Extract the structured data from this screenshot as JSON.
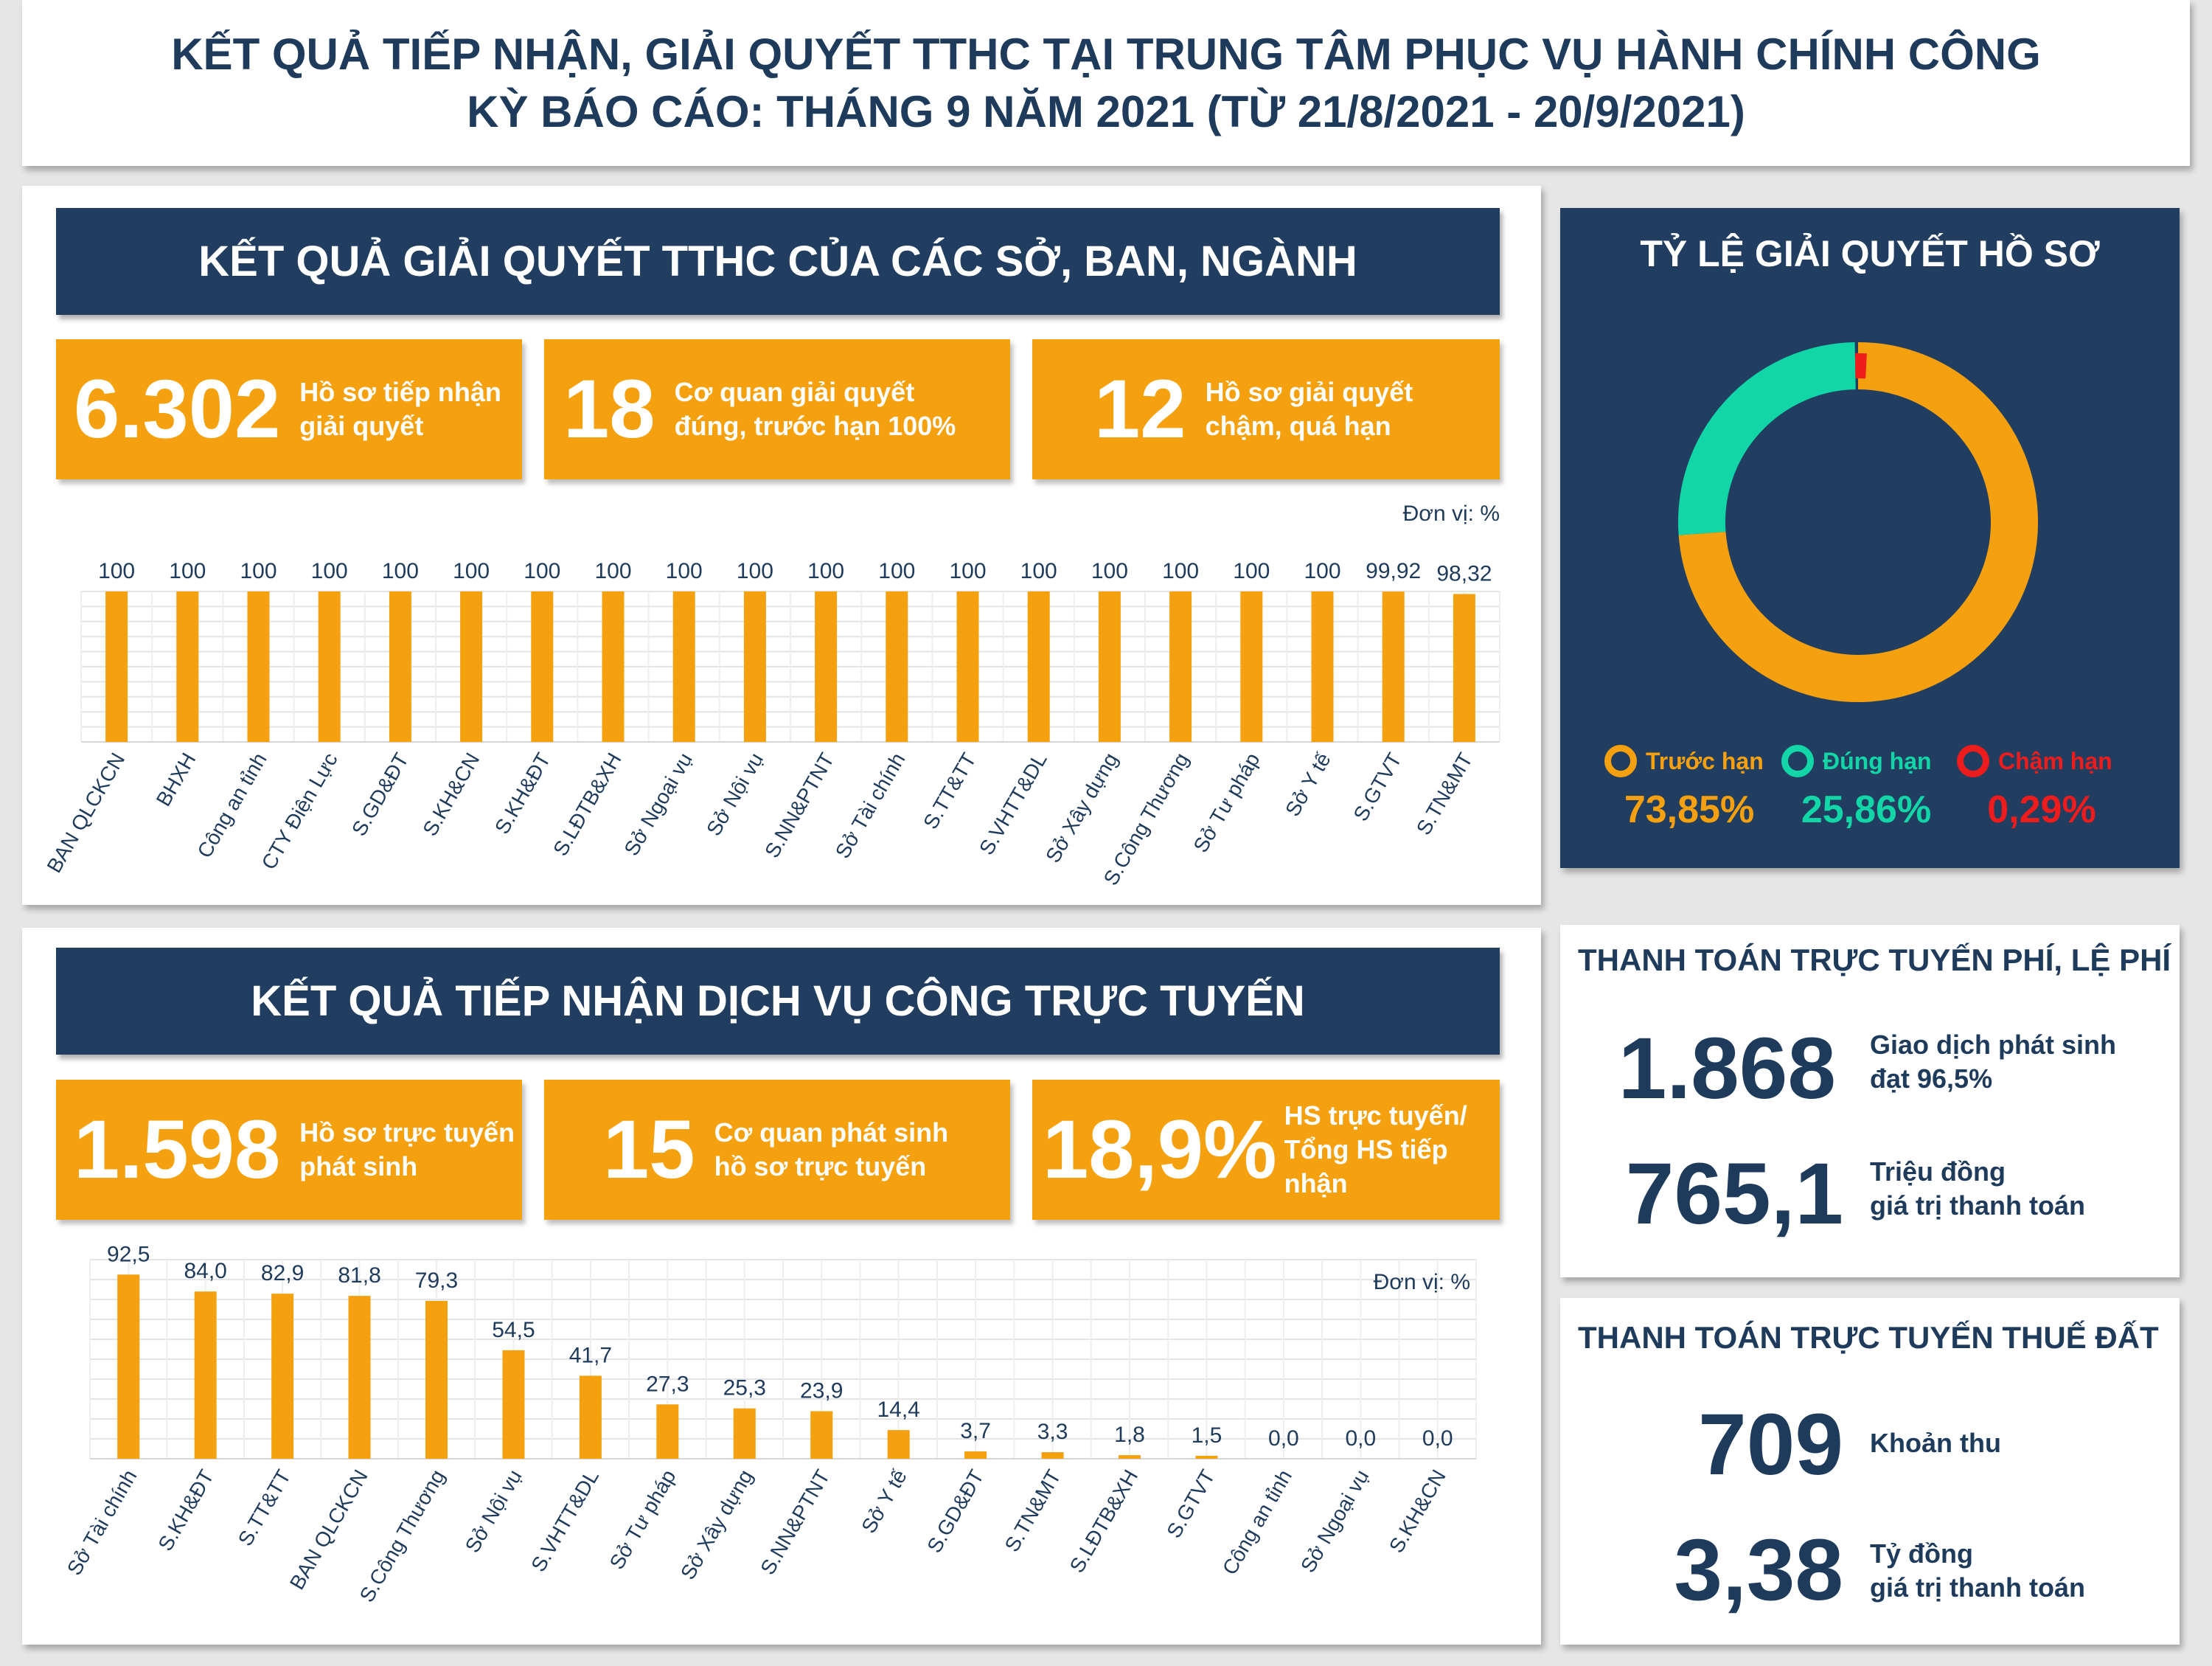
{
  "header": {
    "line1": "KẾT QUẢ TIẾP NHẬN, GIẢI QUYẾT TTHC TẠI TRUNG TÂM PHỤC VỤ HÀNH CHÍNH CÔNG",
    "line2": "KỲ BÁO CÁO: THÁNG 9 NĂM 2021 (TỪ 21/8/2021 - 20/9/2021)"
  },
  "section1": {
    "title": "KẾT QUẢ GIẢI QUYẾT TTHC CỦA CÁC SỞ, BAN, NGÀNH",
    "stats": [
      {
        "number": "6.302",
        "line1": "Hồ sơ tiếp nhận",
        "line2": "giải quyết"
      },
      {
        "number": "18",
        "line1": "Cơ quan giải quyết",
        "line2": "đúng, trước hạn 100%"
      },
      {
        "number": "12",
        "line1": "Hồ sơ giải quyết",
        "line2": "chậm, quá hạn"
      }
    ],
    "unit": "Đơn vị: %"
  },
  "section2": {
    "title": "KẾT QUẢ TIẾP NHẬN DỊCH VỤ CÔNG TRỰC TUYẾN",
    "stats": [
      {
        "number": "1.598",
        "line1": "Hồ sơ trực tuyến",
        "line2": "phát sinh"
      },
      {
        "number": "15",
        "line1": "Cơ quan phát sinh",
        "line2": "hồ sơ trực tuyến"
      },
      {
        "number": "18,9%",
        "line1": "HS trực tuyến/",
        "line2": "Tổng HS tiếp nhận"
      }
    ],
    "unit": "Đơn vị: %"
  },
  "donut": {
    "title": "TỶ LỆ GIẢI QUYẾT HỒ SƠ",
    "legend": [
      {
        "label": "Trước hạn",
        "value": "73,85%",
        "color": "#f5a10f"
      },
      {
        "label": "Đúng hạn",
        "value": "25,86%",
        "color": "#12d6a7"
      },
      {
        "label": "Chậm hạn",
        "value": "0,29%",
        "color": "#ee1c1c"
      }
    ]
  },
  "fees": {
    "title": "THANH TOÁN TRỰC TUYẾN PHÍ, LỆ PHÍ",
    "items": [
      {
        "number": "1.868",
        "line1": "Giao dịch phát sinh",
        "line2": "đạt 96,5%"
      },
      {
        "number": "765,1",
        "line1": "Triệu đồng",
        "line2": "giá trị thanh toán"
      }
    ]
  },
  "landtax": {
    "title": "THANH TOÁN TRỰC TUYẾN THUẾ ĐẤT",
    "items": [
      {
        "number": "709",
        "line1": "Khoản thu",
        "line2": ""
      },
      {
        "number": "3,38",
        "line1": "Tỷ đồng",
        "line2": "giá trị thanh toán"
      }
    ]
  },
  "colors": {
    "navy": "#213e60",
    "orange": "#f5a10f",
    "teal": "#12d6a7",
    "red": "#ee1c1c"
  },
  "chart_data": [
    {
      "type": "bar",
      "categories": [
        "BAN QLCKCN",
        "BHXH",
        "Công an tỉnh",
        "CTY Điện Lực",
        "S.GD&ĐT",
        "S.KH&CN",
        "S.KH&ĐT",
        "S.LĐTB&XH",
        "Sở Ngoại vụ",
        "Sở Nội vụ",
        "S.NN&PTNT",
        "Sở Tài chính",
        "S.TT&TT",
        "S.VHTT&DL",
        "Sở Xây dựng",
        "S.Công Thương",
        "Sở Tư pháp",
        "Sở Y tế",
        "S.GTVT",
        "S.TN&MT"
      ],
      "values": [
        100,
        100,
        100,
        100,
        100,
        100,
        100,
        100,
        100,
        100,
        100,
        100,
        100,
        100,
        100,
        100,
        100,
        100,
        99.92,
        98.32
      ],
      "labels": [
        "100",
        "100",
        "100",
        "100",
        "100",
        "100",
        "100",
        "100",
        "100",
        "100",
        "100",
        "100",
        "100",
        "100",
        "100",
        "100",
        "100",
        "100",
        "99,92",
        "98,32"
      ],
      "ylim": [
        0,
        100
      ],
      "grid": true
    },
    {
      "type": "bar",
      "categories": [
        "Sở Tài chính",
        "S.KH&ĐT",
        "S.TT&TT",
        "BAN QLCKCN",
        "S.Công Thương",
        "Sở Nội vụ",
        "S.VHTT&DL",
        "Sở Tư pháp",
        "Sở Xây dựng",
        "S.NN&PTNT",
        "Sở Y tế",
        "S.GD&ĐT",
        "S.TN&MT",
        "S.LĐTB&XH",
        "S.GTVT",
        "Công an tỉnh",
        "Sở Ngoại vụ",
        "S.KH&CN"
      ],
      "values": [
        92.5,
        84.0,
        82.9,
        81.8,
        79.3,
        54.5,
        41.7,
        27.3,
        25.3,
        23.9,
        14.4,
        3.7,
        3.3,
        1.8,
        1.5,
        0.0,
        0.0,
        0.0
      ],
      "labels": [
        "92,5",
        "84,0",
        "82,9",
        "81,8",
        "79,3",
        "54,5",
        "41,7",
        "27,3",
        "25,3",
        "23,9",
        "14,4",
        "3,7",
        "3,3",
        "1,8",
        "1,5",
        "0,0",
        "0,0",
        "0,0"
      ],
      "ylim": [
        0,
        100
      ],
      "grid": true
    },
    {
      "type": "pie",
      "categories": [
        "Trước hạn",
        "Đúng hạn",
        "Chậm hạn"
      ],
      "values": [
        73.85,
        25.86,
        0.29
      ]
    }
  ]
}
